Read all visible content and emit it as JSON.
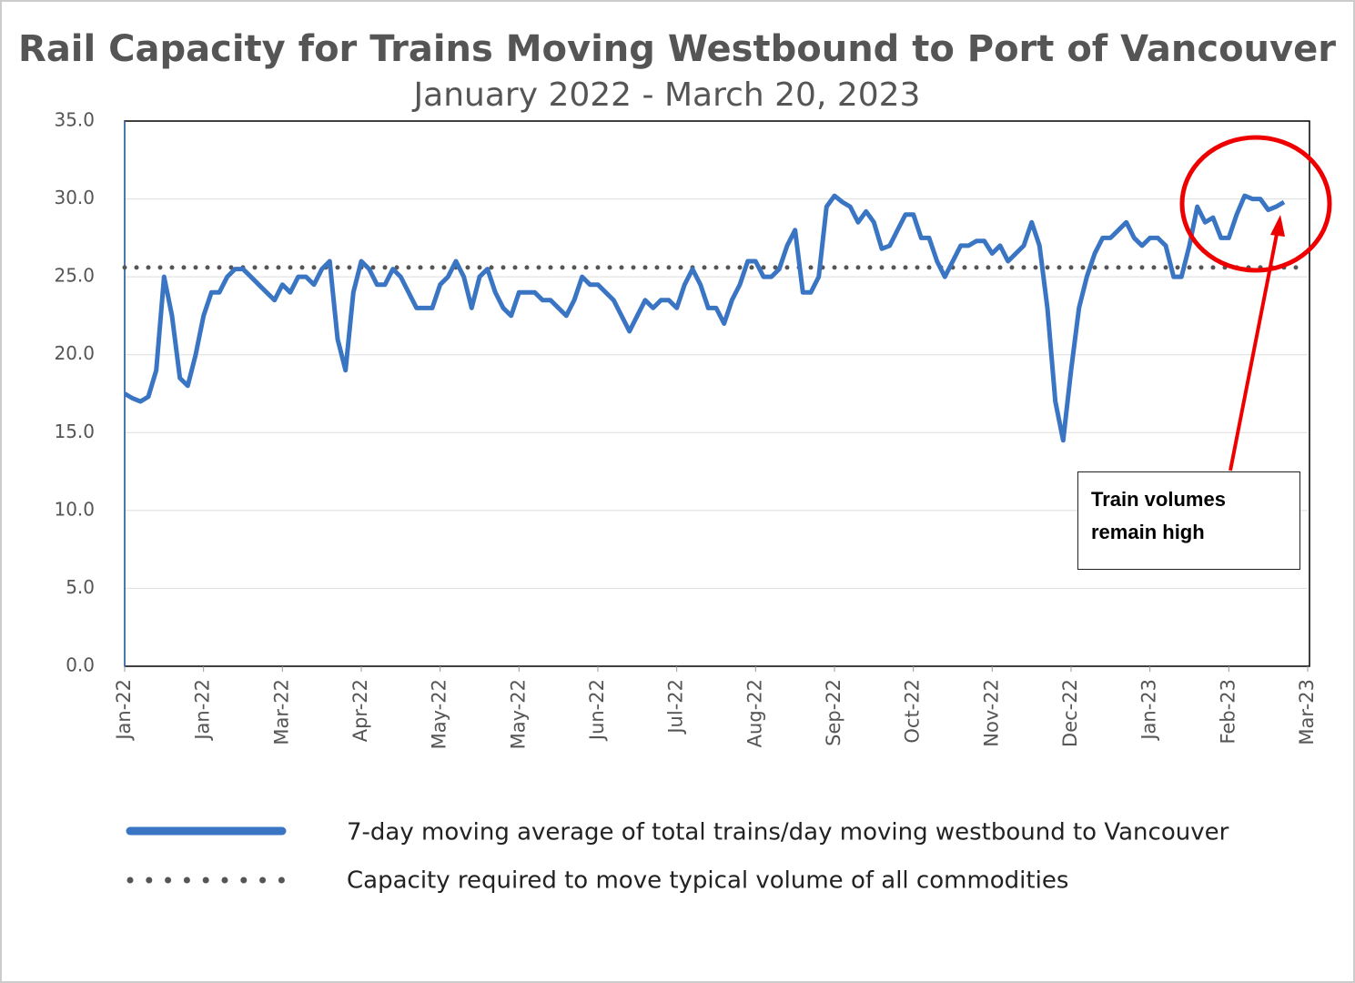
{
  "chart_data": {
    "type": "line",
    "title": "Rail Capacity for Trains Moving Westbound to Port of Vancouver",
    "subtitle": "January 2022 - March 20, 2023",
    "categories": [
      "Jan-22",
      null,
      null,
      null,
      null,
      null,
      null,
      null,
      null,
      null,
      "Jan-22",
      null,
      null,
      null,
      null,
      null,
      null,
      null,
      null,
      null,
      "Mar-22",
      null,
      null,
      null,
      null,
      null,
      null,
      null,
      null,
      null,
      "Apr-22",
      null,
      null,
      null,
      null,
      null,
      null,
      null,
      null,
      null,
      "May-22",
      null,
      null,
      null,
      null,
      null,
      null,
      null,
      null,
      null,
      "May-22",
      null,
      null,
      null,
      null,
      null,
      null,
      null,
      null,
      null,
      "Jun-22",
      null,
      null,
      null,
      null,
      null,
      null,
      null,
      null,
      null,
      "Jul-22",
      null,
      null,
      null,
      null,
      null,
      null,
      null,
      null,
      null,
      "Aug-22",
      null,
      null,
      null,
      null,
      null,
      null,
      null,
      null,
      null,
      "Sep-22",
      null,
      null,
      null,
      null,
      null,
      null,
      null,
      null,
      null,
      "Oct-22",
      null,
      null,
      null,
      null,
      null,
      null,
      null,
      null,
      null,
      "Nov-22",
      null,
      null,
      null,
      null,
      null,
      null,
      null,
      null,
      null,
      "Dec-22",
      null,
      null,
      null,
      null,
      null,
      null,
      null,
      null,
      null,
      "Jan-23",
      null,
      null,
      null,
      null,
      null,
      null,
      null,
      null,
      null,
      "Feb-23",
      null,
      null,
      null,
      null,
      null,
      null,
      null,
      null,
      null,
      "Mar-23"
    ],
    "series": [
      {
        "name": "7-day moving average of total trains/day moving westbound to Vancouver",
        "color": "#3a75c4",
        "values": [
          17.5,
          17.2,
          17.0,
          17.3,
          19,
          25,
          22.5,
          18.5,
          18,
          20,
          22.5,
          24,
          24,
          25,
          25.5,
          25.5,
          25,
          24.5,
          24,
          23.5,
          24.5,
          24,
          25,
          25,
          24.5,
          25.5,
          26,
          21,
          19,
          24,
          26,
          25.5,
          24.5,
          24.5,
          25.5,
          25,
          24,
          23,
          23,
          23,
          24.5,
          25,
          26,
          25,
          23,
          25,
          25.5,
          24,
          23,
          22.5,
          24,
          24,
          24,
          23.5,
          23.5,
          23,
          22.5,
          23.5,
          25,
          24.5,
          24.5,
          24,
          23.5,
          22.5,
          21.5,
          22.5,
          23.5,
          23,
          23.5,
          23.5,
          23,
          24.5,
          25.5,
          24.5,
          23,
          23,
          22,
          23.5,
          24.5,
          26,
          26,
          25,
          25,
          25.5,
          27,
          28,
          24,
          24,
          25,
          29.5,
          30.2,
          29.8,
          29.5,
          28.5,
          29.2,
          28.5,
          26.8,
          27,
          28,
          29,
          29,
          27.5,
          27.5,
          26,
          25,
          26,
          27,
          27,
          27.3,
          27.3,
          26.5,
          27,
          26,
          26.5,
          27,
          28.5,
          27,
          23,
          17,
          14.5,
          19,
          23,
          25,
          26.5,
          27.5,
          27.5,
          28,
          28.5,
          27.5,
          27,
          27.5,
          27.5,
          27,
          25,
          25,
          27,
          29.5,
          28.5,
          28.8,
          27.5,
          27.5,
          29,
          30.2,
          30,
          30,
          29.3,
          29.5,
          29.8,
          null,
          null,
          null
        ]
      }
    ],
    "reference_line": {
      "name": "Capacity required to move typical volume of all commodities",
      "value": 25.6,
      "color": "#555555"
    },
    "ylim": [
      0,
      35
    ],
    "yticks": [
      {
        "value": 0,
        "label": "0.0"
      },
      {
        "value": 5,
        "label": "5.0"
      },
      {
        "value": 10,
        "label": "10.0"
      },
      {
        "value": 15,
        "label": "15.0"
      },
      {
        "value": 20,
        "label": "20.0"
      },
      {
        "value": 25,
        "label": "25.0"
      },
      {
        "value": 30,
        "label": "30.0"
      },
      {
        "value": 35,
        "label": "35.0"
      }
    ],
    "grid": true,
    "annotation": "Train volumes remain high"
  }
}
